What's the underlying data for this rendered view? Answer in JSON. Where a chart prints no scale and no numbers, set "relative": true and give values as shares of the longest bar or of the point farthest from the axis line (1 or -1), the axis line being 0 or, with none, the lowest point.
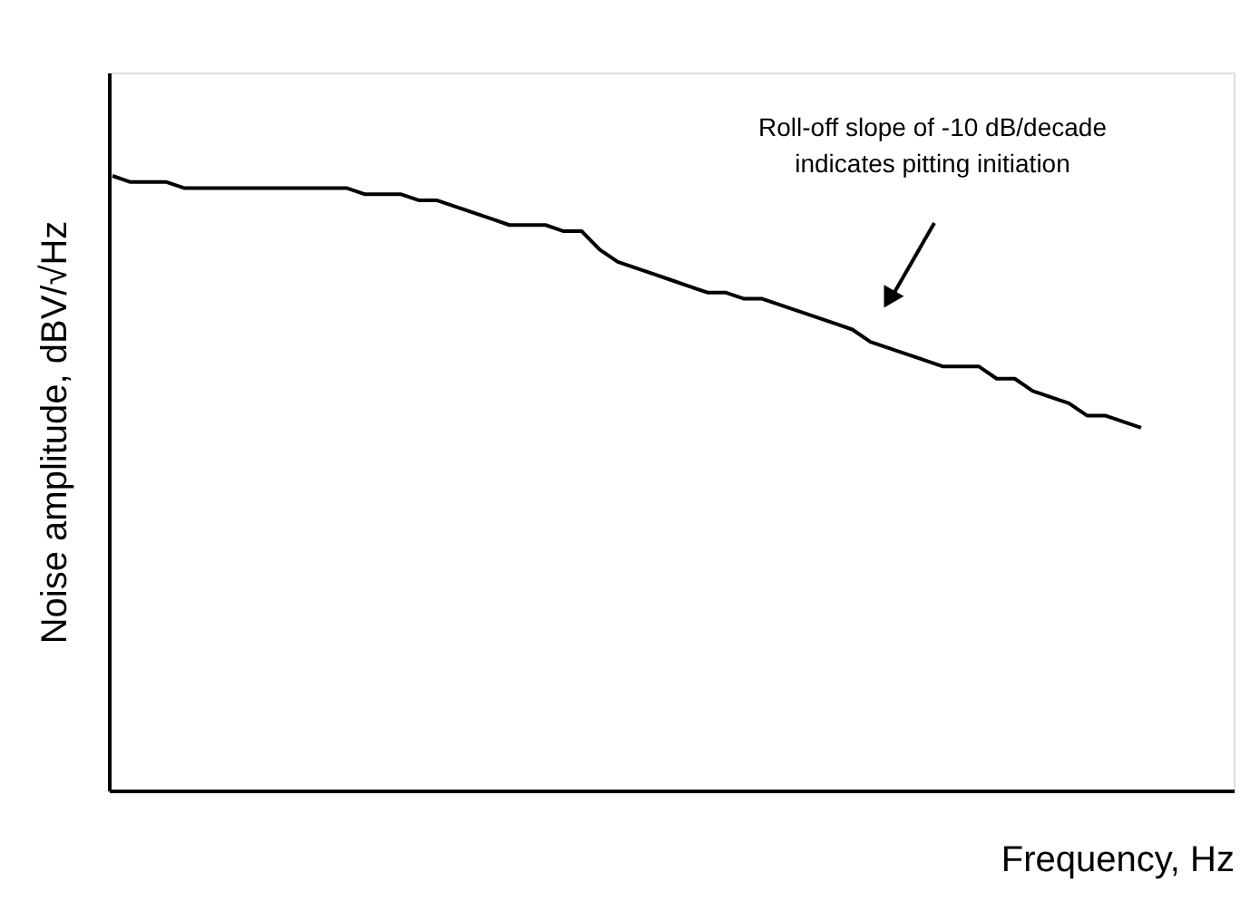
{
  "chart_data": {
    "type": "line",
    "relative": true,
    "xlabel": "Frequency, Hz",
    "ylabel": "Noise amplitude, dBV/√Hz",
    "annotations": [
      "Roll-off slope of -10 dB/decade\nindicates pitting initiation"
    ],
    "categories": [
      null,
      null,
      null,
      null,
      null,
      null,
      null,
      null,
      null,
      null,
      null,
      null,
      null,
      null,
      null,
      null,
      null,
      null,
      null,
      null,
      null,
      null,
      null,
      null,
      null,
      null,
      null,
      null,
      null,
      null,
      null,
      null,
      null,
      null,
      null,
      null,
      null,
      null,
      null,
      null,
      null,
      null,
      null,
      null,
      null,
      null,
      null,
      null,
      null,
      null,
      null,
      null,
      null,
      null,
      null,
      null,
      null,
      null
    ],
    "series": [
      {
        "color": "#000000",
        "values": [
          1.0,
          0.99,
          0.99,
          0.99,
          0.98,
          0.98,
          0.98,
          0.98,
          0.98,
          0.98,
          0.98,
          0.98,
          0.98,
          0.98,
          0.97,
          0.97,
          0.97,
          0.96,
          0.96,
          0.95,
          0.94,
          0.93,
          0.92,
          0.92,
          0.92,
          0.91,
          0.91,
          0.88,
          0.86,
          0.85,
          0.84,
          0.83,
          0.82,
          0.81,
          0.81,
          0.8,
          0.8,
          0.79,
          0.78,
          0.77,
          0.76,
          0.75,
          0.73,
          0.72,
          0.71,
          0.7,
          0.69,
          0.69,
          0.69,
          0.67,
          0.67,
          0.65,
          0.64,
          0.63,
          0.61,
          0.61,
          0.6,
          0.59
        ]
      }
    ],
    "grid": false,
    "line_style": "solid",
    "marker": "none"
  }
}
